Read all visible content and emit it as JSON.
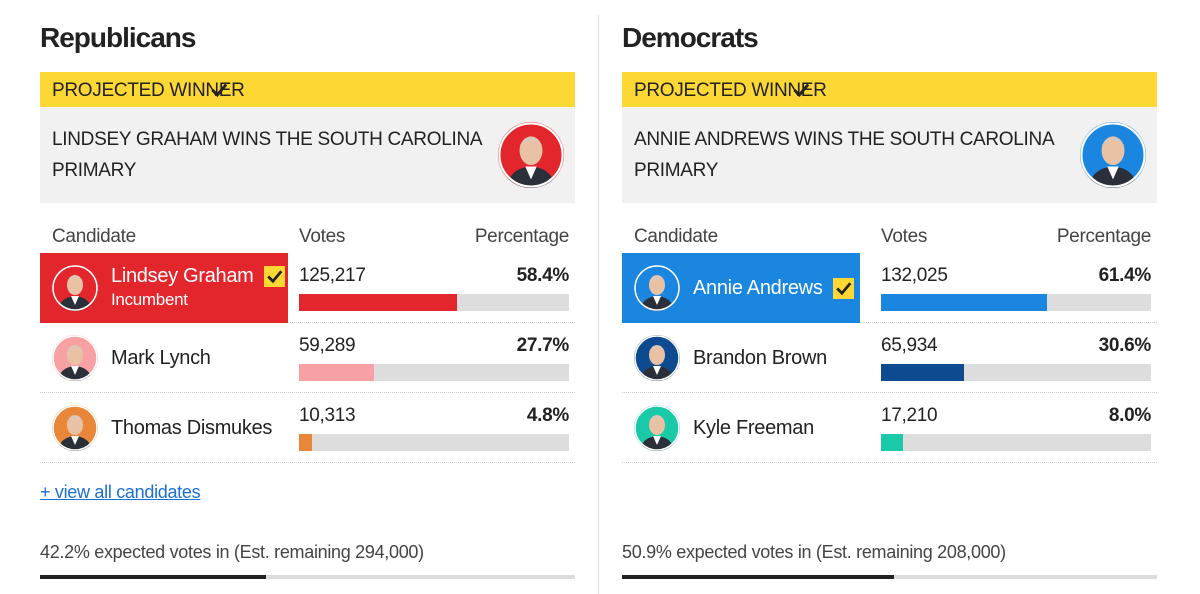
{
  "parties": [
    {
      "title": "Republicans",
      "banner": "PROJECTED WINNER",
      "headline": "LINDSEY GRAHAM WINS THE SOUTH CAROLINA PRIMARY",
      "columns": [
        "Candidate",
        "Votes",
        "Percentage"
      ],
      "candidates": [
        {
          "name": "Lindsey Graham",
          "note": "Incumbent",
          "votes": "125,217",
          "pct": {
            "value": 58.4,
            "label": "58.4%"
          },
          "color": "#e2262c",
          "winner": true
        },
        {
          "name": "Mark Lynch",
          "votes": "59,289",
          "pct": {
            "value": 27.7,
            "label": "27.7%"
          },
          "color": "#f7a1a4"
        },
        {
          "name": "Thomas Dismukes",
          "votes": "10,313",
          "pct": {
            "value": 4.8,
            "label": "4.8%"
          },
          "color": "#e8873a"
        }
      ],
      "link": "+ view all candidates",
      "expected": {
        "value": 42.2,
        "label": "42.2% expected votes in (Est. remaining 294,000)"
      }
    },
    {
      "title": "Democrats",
      "banner": "PROJECTED WINNER",
      "headline": "ANNIE ANDREWS WINS THE SOUTH CAROLINA PRIMARY",
      "columns": [
        "Candidate",
        "Votes",
        "Percentage"
      ],
      "candidates": [
        {
          "name": "Annie Andrews",
          "votes": "132,025",
          "pct": {
            "value": 61.4,
            "label": "61.4%"
          },
          "color": "#1a86e0",
          "winner": true
        },
        {
          "name": "Brandon Brown",
          "votes": "65,934",
          "pct": {
            "value": 30.6,
            "label": "30.6%"
          },
          "color": "#0d4a8f"
        },
        {
          "name": "Kyle Freeman",
          "votes": "17,210",
          "pct": {
            "value": 8.0,
            "label": "8.0%"
          },
          "color": "#19c9a8"
        }
      ],
      "expected": {
        "value": 50.9,
        "label": "50.9% expected votes in (Est. remaining 208,000)"
      }
    }
  ]
}
